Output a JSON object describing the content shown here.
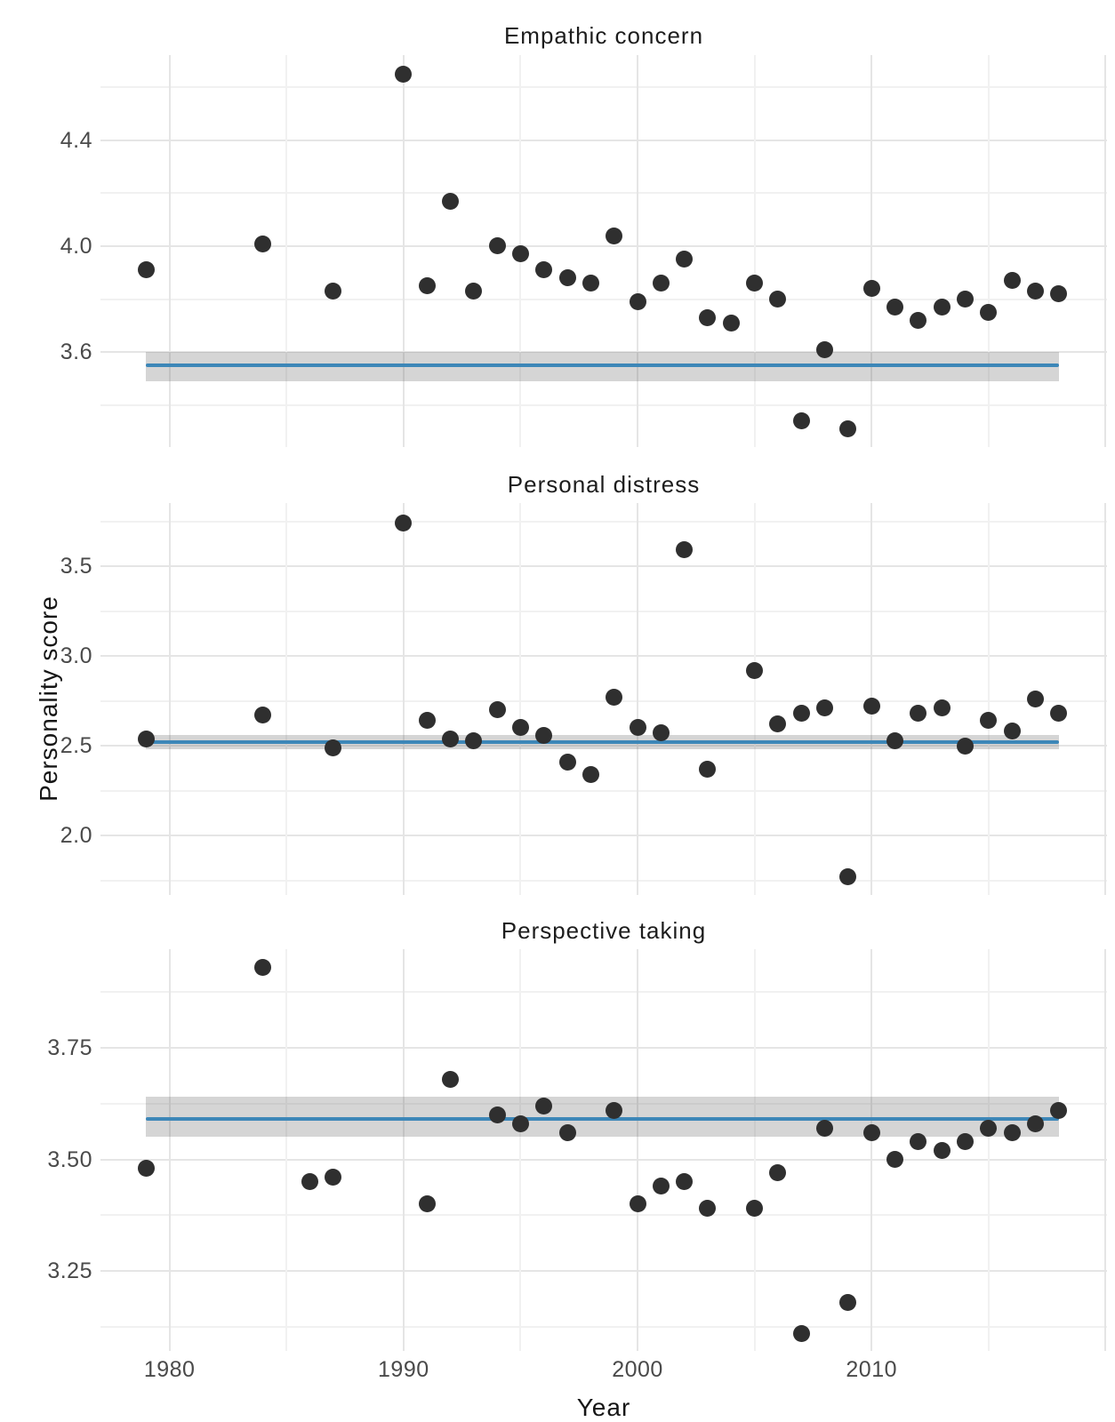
{
  "chart_data": {
    "type": "scatter",
    "description": "Three vertically stacked facet panels of yearly personality scores with a horizontal mean line and gray confidence band in each panel",
    "ylabel": "Personality score",
    "x": {
      "label": "Year",
      "ticks": [
        {
          "v": 1980,
          "label": "1980"
        },
        {
          "v": 1990,
          "label": "1990"
        },
        {
          "v": 2000,
          "label": "2000"
        },
        {
          "v": 2010,
          "label": "2010"
        }
      ],
      "extra_major_gridlines": [
        2020
      ],
      "minor_gridlines": [
        1985,
        1995,
        2005,
        2015
      ],
      "xlim": [
        1977.05,
        2020.06
      ],
      "smooth_range": [
        1979,
        2018
      ]
    },
    "point_color": "#2f2f2f",
    "mean_line_color": "#3d87b8",
    "band_color": "rgba(100,100,100,0.27)",
    "facets": [
      {
        "title": "Empathic concern",
        "mean": 3.55,
        "ci": [
          3.49,
          3.6
        ],
        "ylim": [
          3.242,
          4.721
        ],
        "yticks": [
          {
            "v": 4.4,
            "label": "4.4"
          },
          {
            "v": 4.0,
            "label": "4.0"
          },
          {
            "v": 3.6,
            "label": "3.6"
          }
        ],
        "minor_gridlines": [
          4.6,
          4.2,
          3.8,
          3.4
        ],
        "points": [
          [
            1979,
            3.91
          ],
          [
            1984,
            4.01
          ],
          [
            1987,
            3.83
          ],
          [
            1990,
            4.65
          ],
          [
            1991,
            3.85
          ],
          [
            1992,
            4.17
          ],
          [
            1993,
            3.83
          ],
          [
            1994,
            4.0
          ],
          [
            1995,
            3.97
          ],
          [
            1996,
            3.91
          ],
          [
            1997,
            3.88
          ],
          [
            1998,
            3.86
          ],
          [
            1999,
            4.04
          ],
          [
            2000,
            3.79
          ],
          [
            2001,
            3.86
          ],
          [
            2002,
            3.95
          ],
          [
            2003,
            3.73
          ],
          [
            2004,
            3.71
          ],
          [
            2005,
            3.86
          ],
          [
            2006,
            3.8
          ],
          [
            2007,
            3.34
          ],
          [
            2008,
            3.61
          ],
          [
            2009,
            3.31
          ],
          [
            2010,
            3.84
          ],
          [
            2011,
            3.77
          ],
          [
            2012,
            3.72
          ],
          [
            2013,
            3.77
          ],
          [
            2014,
            3.8
          ],
          [
            2015,
            3.75
          ],
          [
            2016,
            3.87
          ],
          [
            2017,
            3.83
          ],
          [
            2018,
            3.82
          ]
        ]
      },
      {
        "title": "Personal distress",
        "mean": 2.52,
        "ci": [
          2.48,
          2.56
        ],
        "ylim": [
          1.669,
          3.852
        ],
        "yticks": [
          {
            "v": 3.5,
            "label": "3.5"
          },
          {
            "v": 3.0,
            "label": "3.0"
          },
          {
            "v": 2.5,
            "label": "2.5"
          },
          {
            "v": 2.0,
            "label": "2.0"
          }
        ],
        "minor_gridlines": [
          3.75,
          3.25,
          2.75,
          2.25,
          1.75
        ],
        "points": [
          [
            1979,
            2.54
          ],
          [
            1984,
            2.67
          ],
          [
            1987,
            2.49
          ],
          [
            1990,
            3.74
          ],
          [
            1991,
            2.64
          ],
          [
            1992,
            2.54
          ],
          [
            1993,
            2.53
          ],
          [
            1994,
            2.7
          ],
          [
            1995,
            2.6
          ],
          [
            1996,
            2.56
          ],
          [
            1997,
            2.41
          ],
          [
            1998,
            2.34
          ],
          [
            1999,
            2.77
          ],
          [
            2000,
            2.6
          ],
          [
            2001,
            2.57
          ],
          [
            2002,
            3.59
          ],
          [
            2003,
            2.37
          ],
          [
            2005,
            2.92
          ],
          [
            2006,
            2.62
          ],
          [
            2007,
            2.68
          ],
          [
            2008,
            2.71
          ],
          [
            2009,
            1.77
          ],
          [
            2010,
            2.72
          ],
          [
            2011,
            2.53
          ],
          [
            2012,
            2.68
          ],
          [
            2013,
            2.71
          ],
          [
            2014,
            2.5
          ],
          [
            2015,
            2.64
          ],
          [
            2016,
            2.58
          ],
          [
            2017,
            2.76
          ],
          [
            2018,
            2.68
          ]
        ]
      },
      {
        "title": "Perspective taking",
        "mean": 3.59,
        "ci": [
          3.55,
          3.64
        ],
        "ylim": [
          3.071,
          3.971
        ],
        "yticks": [
          {
            "v": 3.75,
            "label": "3.75"
          },
          {
            "v": 3.5,
            "label": "3.50"
          },
          {
            "v": 3.25,
            "label": "3.25"
          }
        ],
        "minor_gridlines": [
          3.875,
          3.625,
          3.375,
          3.125
        ],
        "points": [
          [
            1979,
            3.48
          ],
          [
            1984,
            3.93
          ],
          [
            1986,
            3.45
          ],
          [
            1987,
            3.46
          ],
          [
            1991,
            3.4
          ],
          [
            1992,
            3.68
          ],
          [
            1994,
            3.6
          ],
          [
            1995,
            3.58
          ],
          [
            1996,
            3.62
          ],
          [
            1997,
            3.56
          ],
          [
            1999,
            3.61
          ],
          [
            2000,
            3.4
          ],
          [
            2001,
            3.44
          ],
          [
            2002,
            3.45
          ],
          [
            2003,
            3.39
          ],
          [
            2005,
            3.39
          ],
          [
            2006,
            3.47
          ],
          [
            2007,
            3.11
          ],
          [
            2008,
            3.57
          ],
          [
            2009,
            3.18
          ],
          [
            2010,
            3.56
          ],
          [
            2011,
            3.5
          ],
          [
            2012,
            3.54
          ],
          [
            2013,
            3.52
          ],
          [
            2014,
            3.54
          ],
          [
            2015,
            3.57
          ],
          [
            2016,
            3.56
          ],
          [
            2017,
            3.58
          ],
          [
            2018,
            3.61
          ]
        ]
      }
    ]
  }
}
